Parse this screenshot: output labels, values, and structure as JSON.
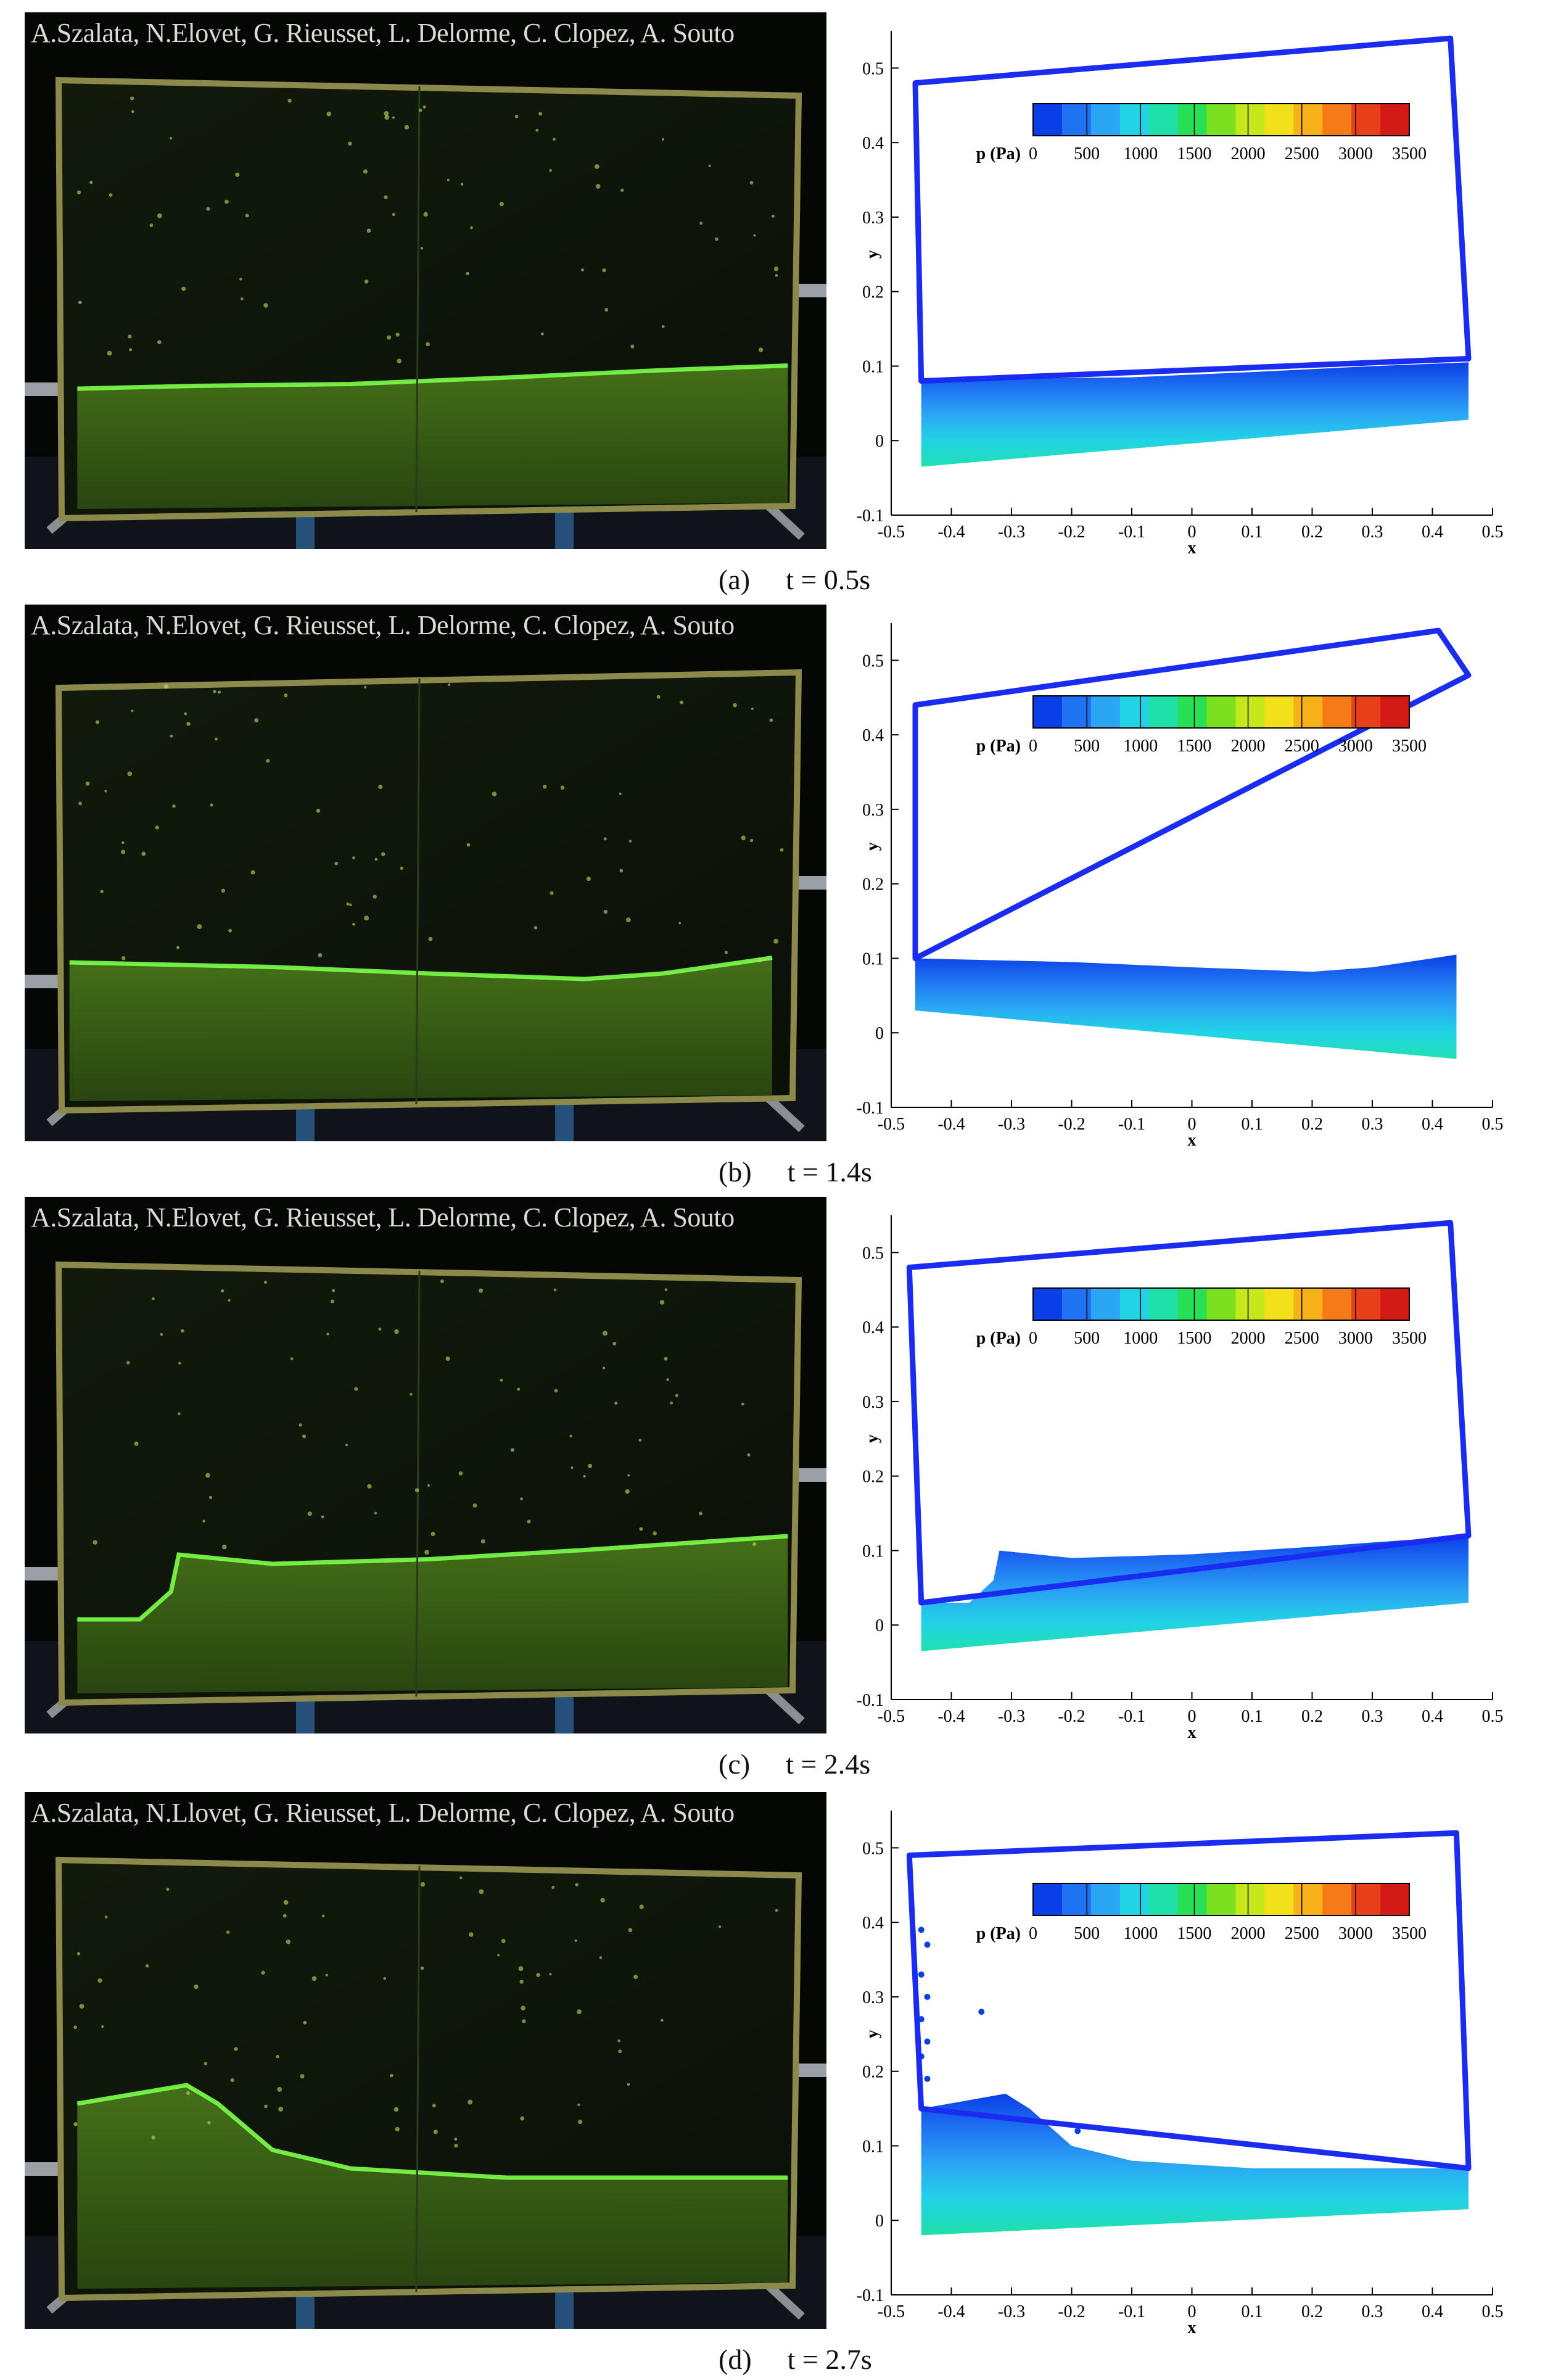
{
  "figure": {
    "panels": [
      {
        "label": "(a)",
        "time": "t = 0.5s",
        "credit": "A.Szalata, N.Elovet, G. Rieusset, L. Delorme, C. Clopez, A. Souto"
      },
      {
        "label": "(b)",
        "time": "t = 1.4s",
        "credit": "A.Szalata, N.Elovet, G. Rieusset, L. Delorme, C. Clopez, A. Souto"
      },
      {
        "label": "(c)",
        "time": "t = 2.4s",
        "credit": "A.Szalata, N.Elovet, G. Rieusset, L. Delorme, C. Clopez, A. Souto"
      },
      {
        "label": "(d)",
        "time": "t = 2.7s",
        "credit": "A.Szalata, N.Llovet, G. Rieusset, L. Delorme, C. Clopez, A. Souto"
      }
    ]
  },
  "colorbar": {
    "label": "p (Pa)",
    "ticks": [
      "0",
      "500",
      "1000",
      "1500",
      "2000",
      "2500",
      "3000",
      "3500"
    ],
    "colors": [
      "#0a3fe8",
      "#1f73f2",
      "#2aa6f4",
      "#22d3e6",
      "#1fe0a8",
      "#27e055",
      "#7be020",
      "#c6e81a",
      "#f2e01a",
      "#f7b21a",
      "#f57a18",
      "#e8401a",
      "#d41a14"
    ]
  },
  "chart_data": {
    "type": "scatter",
    "xlabel": "x",
    "ylabel": "y",
    "xlim": [
      -0.5,
      0.5
    ],
    "ylim": [
      -0.1,
      0.55
    ],
    "x_ticks": [
      "-0.5",
      "-0.4",
      "-0.3",
      "-0.2",
      "-0.1",
      "0",
      "0.1",
      "0.2",
      "0.3",
      "0.4",
      "0.5"
    ],
    "y_ticks": [
      "-0.1",
      "0",
      "0.1",
      "0.2",
      "0.3",
      "0.4",
      "0.5"
    ],
    "tank_color": "#1a2cf0",
    "frames": [
      {
        "tank": [
          [
            -0.46,
            0.48
          ],
          [
            0.43,
            0.54
          ],
          [
            0.46,
            0.11
          ],
          [
            -0.45,
            0.08
          ]
        ],
        "free_surface": [
          [
            -0.45,
            0.08
          ],
          [
            -0.3,
            0.083
          ],
          [
            -0.1,
            0.085
          ],
          [
            0.1,
            0.092
          ],
          [
            0.3,
            0.1
          ],
          [
            0.46,
            0.105
          ]
        ],
        "bottom": [
          [
            -0.45,
            -0.035
          ],
          [
            0.46,
            0.028
          ]
        ]
      },
      {
        "tank": [
          [
            -0.46,
            0.44
          ],
          [
            0.41,
            0.54
          ],
          [
            0.46,
            0.48
          ],
          [
            -0.46,
            0.1
          ]
        ],
        "free_surface": [
          [
            -0.46,
            0.1
          ],
          [
            -0.2,
            0.095
          ],
          [
            0.0,
            0.088
          ],
          [
            0.2,
            0.082
          ],
          [
            0.3,
            0.088
          ],
          [
            0.4,
            0.1
          ],
          [
            0.44,
            0.105
          ]
        ],
        "bottom": [
          [
            -0.46,
            0.03
          ],
          [
            0.44,
            -0.035
          ]
        ]
      },
      {
        "tank": [
          [
            -0.47,
            0.48
          ],
          [
            0.43,
            0.54
          ],
          [
            0.46,
            0.12
          ],
          [
            -0.45,
            0.03
          ]
        ],
        "free_surface": [
          [
            -0.45,
            0.03
          ],
          [
            -0.37,
            0.03
          ],
          [
            -0.33,
            0.06
          ],
          [
            -0.32,
            0.1
          ],
          [
            -0.2,
            0.09
          ],
          [
            0.0,
            0.095
          ],
          [
            0.2,
            0.105
          ],
          [
            0.46,
            0.12
          ]
        ],
        "bottom": [
          [
            -0.45,
            -0.035
          ],
          [
            0.46,
            0.03
          ]
        ]
      },
      {
        "tank": [
          [
            -0.47,
            0.49
          ],
          [
            0.44,
            0.52
          ],
          [
            0.46,
            0.07
          ],
          [
            -0.45,
            0.15
          ]
        ],
        "free_surface": [
          [
            -0.45,
            0.15
          ],
          [
            -0.38,
            0.16
          ],
          [
            -0.31,
            0.17
          ],
          [
            -0.27,
            0.15
          ],
          [
            -0.2,
            0.1
          ],
          [
            -0.1,
            0.08
          ],
          [
            0.1,
            0.07
          ],
          [
            0.46,
            0.07
          ]
        ],
        "bottom": [
          [
            -0.45,
            -0.02
          ],
          [
            0.46,
            0.015
          ]
        ],
        "spray": [
          [
            -0.45,
            0.39
          ],
          [
            -0.44,
            0.37
          ],
          [
            -0.45,
            0.33
          ],
          [
            -0.44,
            0.3
          ],
          [
            -0.45,
            0.27
          ],
          [
            -0.44,
            0.24
          ],
          [
            -0.45,
            0.22
          ],
          [
            -0.44,
            0.19
          ],
          [
            -0.35,
            0.28
          ],
          [
            -0.19,
            0.12
          ]
        ]
      }
    ]
  }
}
